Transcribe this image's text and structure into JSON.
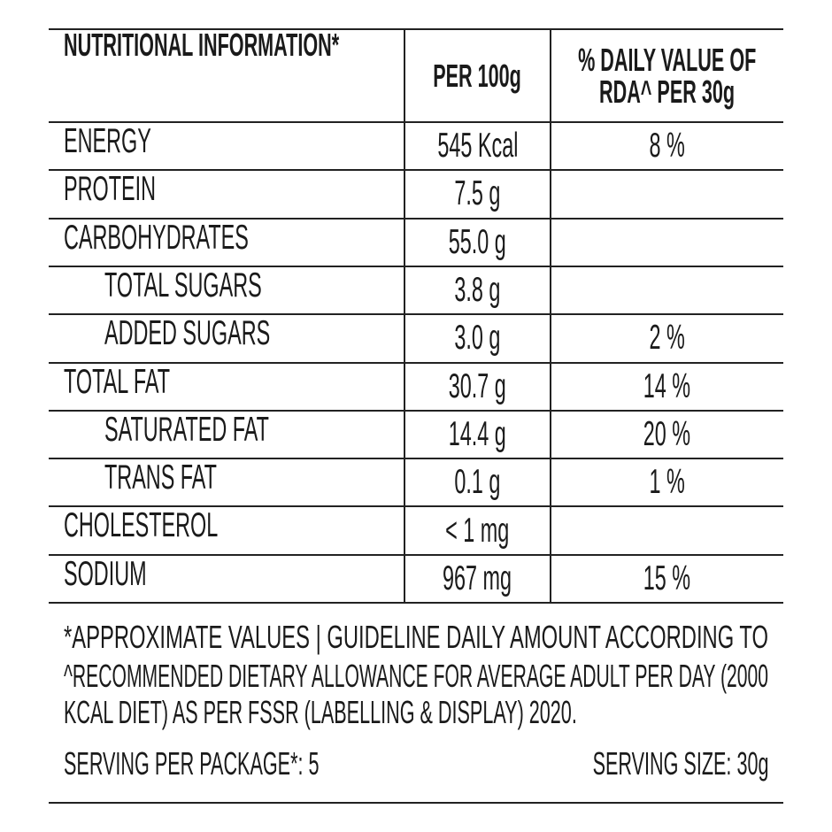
{
  "table": {
    "columns": [
      {
        "lines": [
          "NUTRITIONAL INFORMATION*"
        ]
      },
      {
        "lines": [
          "PER 100g"
        ]
      },
      {
        "lines": [
          "% DAILY VALUE OF",
          "RDA^ PER 30g"
        ]
      }
    ],
    "rows": [
      {
        "name": "ENERGY",
        "per_100g": "545 Kcal",
        "daily_value": "8 %"
      },
      {
        "name": "PROTEIN",
        "per_100g": "7.5 g",
        "daily_value": null
      },
      {
        "name": "CARBOHYDRATES",
        "per_100g": "55.0 g",
        "daily_value": null,
        "sub_rows": [
          {
            "name": "TOTAL SUGARS",
            "per_100g": "3.8 g",
            "daily_value": null
          },
          {
            "name": "ADDED SUGARS",
            "per_100g": "3.0 g",
            "daily_value": "2 %"
          }
        ]
      },
      {
        "name": "TOTAL FAT",
        "per_100g": "30.7 g",
        "daily_value": "14 %",
        "sub_rows": [
          {
            "name": "SATURATED FAT",
            "per_100g": "14.4 g",
            "daily_value": "20 %"
          },
          {
            "name": "TRANS FAT",
            "per_100g": "0.1 g",
            "daily_value": "1 %"
          }
        ]
      },
      {
        "name": "CHOLESTEROL",
        "per_100g": "< 1 mg",
        "daily_value": null
      },
      {
        "name": "SODIUM",
        "per_100g": "967 mg",
        "daily_value": "15 %"
      }
    ]
  },
  "note_lines": [
    "*APPROXIMATE VALUES | GUIDELINE DAILY AMOUNT ACCORDING TO",
    "^RECOMMENDED DIETARY ALLOWANCE FOR AVERAGE ADULT PER DAY (2000",
    "KCAL DIET) AS PER FSSR (LABELLING & DISPLAY) 2020."
  ],
  "serving_per_package": "SERVING PER PACKAGE*: 5",
  "serving_size": "SERVING SIZE: 30g"
}
